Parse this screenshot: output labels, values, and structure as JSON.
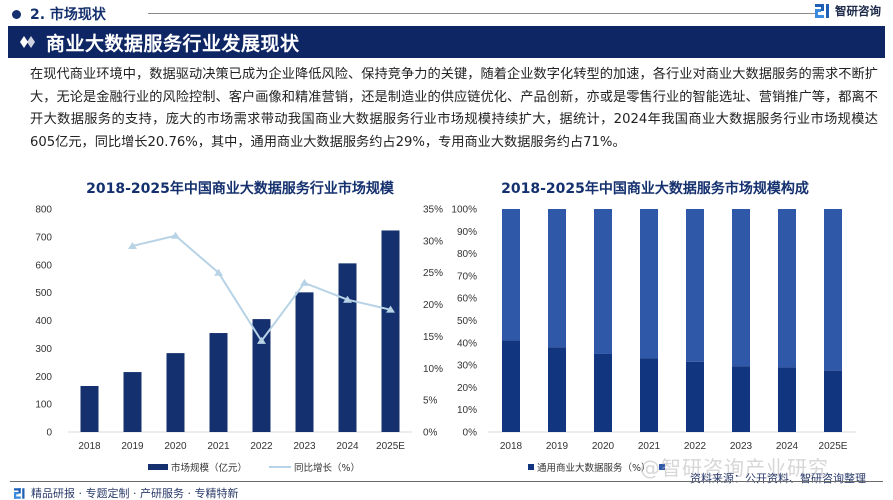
{
  "header": {
    "section_label": "2. 市场现状",
    "brand_name": "智研咨询",
    "banner_title": "商业大数据服务行业发展现状"
  },
  "intro_text": "在现代商业环境中，数据驱动决策已成为企业降低风险、保持竞争力的关键，随着企业数字化转型的加速，各行业对商业大数据服务的需求不断扩大，无论是金融行业的风险控制、客户画像和精准营销，还是制造业的供应链优化、产品创新，亦或是零售行业的智能选址、营销推广等，都离不开大数据服务的支持，庞大的市场需求带动我国商业大数据服务行业市场规模持续扩大，据统计，2024年我国商业大数据服务行业市场规模达605亿元，同比增长20.76%，其中，通用商业大数据服务约占29%，专用商业大数据服务约占71%。",
  "colors": {
    "navy": "#14306e",
    "banner": "#0f2664",
    "light_line": "#b8d3e6",
    "stack_top": "#2f58a8",
    "stack_bottom": "#123580"
  },
  "chart_data": [
    {
      "type": "bar",
      "title": "2018-2025年中国商业大数据服务行业市场规模",
      "categories": [
        "2018",
        "2019",
        "2020",
        "2021",
        "2022",
        "2023",
        "2024",
        "2025E"
      ],
      "series": [
        {
          "name": "市场规模（亿元）",
          "type": "bar",
          "axis": "left",
          "values": [
            165,
            215,
            283,
            355,
            405,
            501,
            605,
            723
          ]
        },
        {
          "name": "同比增长（%）",
          "type": "line",
          "axis": "right",
          "values": [
            null,
            29.2,
            30.8,
            25.0,
            14.3,
            23.4,
            20.76,
            19.2
          ]
        }
      ],
      "ylim": [
        0,
        800
      ],
      "yticks": [
        "0",
        "100",
        "200",
        "300",
        "400",
        "500",
        "600",
        "700",
        "800"
      ],
      "y2lim": [
        0,
        35
      ],
      "y2ticks": [
        "0%",
        "5%",
        "10%",
        "15%",
        "20%",
        "25%",
        "30%",
        "35%"
      ],
      "xlabel": "",
      "ylabel": "",
      "grid": false,
      "legend": "bottom"
    },
    {
      "type": "bar",
      "stacked": true,
      "title": "2018-2025年中国商业大数据服务市场规模构成",
      "categories": [
        "2018",
        "2019",
        "2020",
        "2021",
        "2022",
        "2023",
        "2024",
        "2025E"
      ],
      "series": [
        {
          "name": "通用商业大数据服务（%）",
          "values": [
            41,
            38,
            35,
            33,
            31.5,
            29.5,
            29,
            27.5
          ]
        },
        {
          "name": "专用商业大数据服务（%）",
          "values": [
            59,
            62,
            65,
            67,
            68.5,
            70.5,
            71,
            72.5
          ]
        }
      ],
      "ylim": [
        0,
        100
      ],
      "yticks": [
        "0%",
        "10%",
        "20%",
        "30%",
        "40%",
        "50%",
        "60%",
        "70%",
        "80%",
        "90%",
        "100%"
      ],
      "xlabel": "",
      "ylabel": "",
      "grid": false,
      "legend": "bottom"
    }
  ],
  "legend_left": {
    "bar": "市场规模（亿元）",
    "line": "同比增长（%）"
  },
  "legend_right": {
    "a": "通用商业大数据服务（%）",
    "b": "专用商业大数据服务（%）"
  },
  "source_text": "资料来源：公开资料、智研咨询整理",
  "watermark_text": "@智研咨询产业研究",
  "footer_text": "精品研报 · 专题定制 · 产研服务 · 专精特新"
}
